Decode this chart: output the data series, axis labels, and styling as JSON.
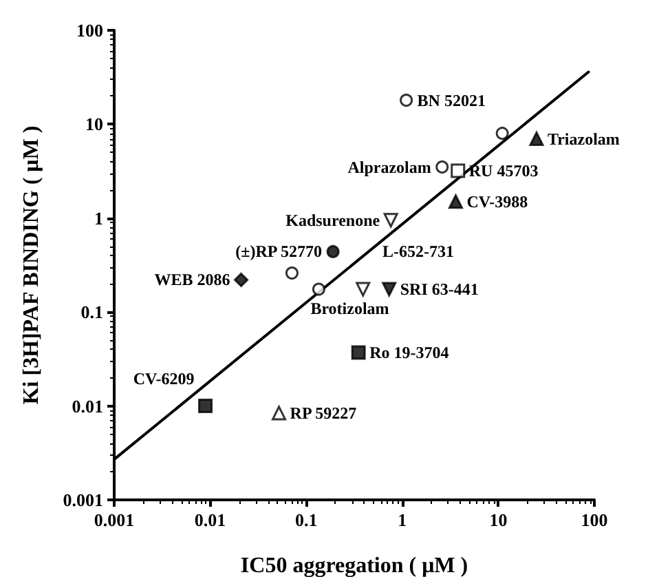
{
  "chart_data": {
    "type": "scatter",
    "xlabel": "IC50 aggregation ( μM )",
    "ylabel": "Ki [3H]PAF BINDING ( μM )",
    "log": "xy",
    "xlim": [
      0.001,
      100
    ],
    "xticks": [
      0.001,
      0.01,
      0.1,
      1,
      10,
      100
    ],
    "ylim": [
      0.001,
      100
    ],
    "yticks": [
      0.001,
      0.01,
      0.1,
      1,
      10,
      100
    ],
    "series": [
      {
        "marker": "circle",
        "color": "#ffffff",
        "x": [
          1.1,
          11,
          2.6,
          0.071,
          0.135
        ],
        "values": [
          18,
          8,
          3.5,
          0.26,
          0.175
        ]
      },
      {
        "marker": "circle",
        "color": "#000000",
        "x": [
          0.19
        ],
        "values": [
          0.44
        ]
      },
      {
        "marker": "triangle",
        "color": "#000000",
        "x": [
          25,
          3.6
        ],
        "values": [
          7,
          1.5
        ]
      },
      {
        "marker": "triangle",
        "color": "#ffffff",
        "x": [
          0.052
        ],
        "values": [
          0.0084
        ]
      },
      {
        "marker": "square",
        "color": "#ffffff",
        "x": [
          3.8
        ],
        "values": [
          3.2
        ]
      },
      {
        "marker": "square",
        "color": "#000000",
        "x": [
          0.35,
          0.0089
        ],
        "values": [
          0.037,
          0.01
        ]
      },
      {
        "marker": "diamond",
        "color": "#000000",
        "x": [
          0.021
        ],
        "values": [
          0.22
        ]
      },
      {
        "marker": "triangle-down",
        "color": "#ffffff",
        "x": [
          0.76,
          0.39
        ],
        "values": [
          0.95,
          0.175
        ]
      },
      {
        "marker": "triangle-down",
        "color": "#000000",
        "x": [
          0.73
        ],
        "values": [
          0.175
        ]
      },
      {
        "type": "line",
        "marker": "none",
        "color": "#000000",
        "x": [
          0.001,
          87
        ],
        "values": [
          0.0027,
          36
        ]
      }
    ],
    "annotations": [
      {
        "text": "BN 52021",
        "x": 1.1,
        "y": 18
      },
      {
        "text": "Triazolam",
        "x": 25,
        "y": 7
      },
      {
        "text": "Alprazolam",
        "x": 2.6,
        "y": 3.5
      },
      {
        "text": "RU 45703",
        "x": 3.8,
        "y": 3.2
      },
      {
        "text": "CV-3988",
        "x": 3.6,
        "y": 1.5
      },
      {
        "text": "Kadsurenone",
        "x": 0.76,
        "y": 0.95
      },
      {
        "text": "(±)RP 52770",
        "x": 0.19,
        "y": 0.44
      },
      {
        "text": "L-652-731",
        "x": 0.19,
        "y": 0.44
      },
      {
        "text": "WEB 2086",
        "x": 0.021,
        "y": 0.22
      },
      {
        "text": "SRI 63-441",
        "x": 0.73,
        "y": 0.175
      },
      {
        "text": "Brotizolam",
        "x": 0.135,
        "y": 0.175
      },
      {
        "text": "Ro 19-3704",
        "x": 0.35,
        "y": 0.037
      },
      {
        "text": "CV-6209",
        "x": 0.0089,
        "y": 0.01
      },
      {
        "text": "RP 59227",
        "x": 0.052,
        "y": 0.0084
      }
    ]
  }
}
